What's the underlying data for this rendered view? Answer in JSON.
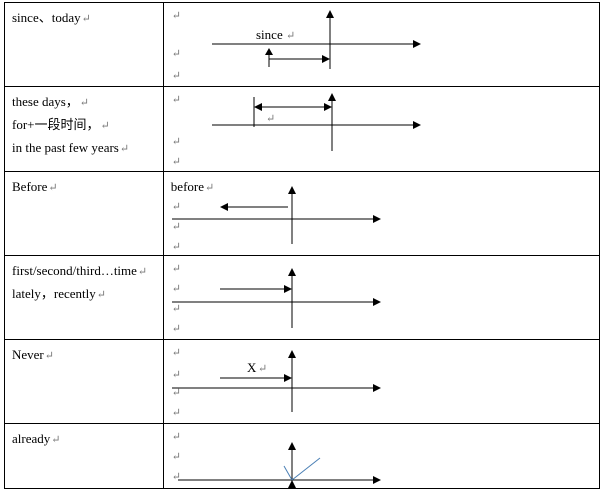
{
  "paragraph_mark": "↵",
  "rows": [
    {
      "label_lines": [
        "since、today"
      ],
      "diagram_text": "since"
    },
    {
      "label_lines": [
        "these days，",
        "for+一段时间，",
        "in the past few years"
      ],
      "diagram_text": ""
    },
    {
      "label_lines": [
        "Before"
      ],
      "diagram_text": "before"
    },
    {
      "label_lines": [
        "first/second/third…time",
        "lately，recently"
      ],
      "diagram_text": ""
    },
    {
      "label_lines": [
        "Never"
      ],
      "diagram_text": "X"
    },
    {
      "label_lines": [
        "already"
      ],
      "diagram_text": ""
    }
  ],
  "colors": {
    "line": "#000000",
    "already_tick": "#4a7fb5",
    "mark": "#777777"
  }
}
